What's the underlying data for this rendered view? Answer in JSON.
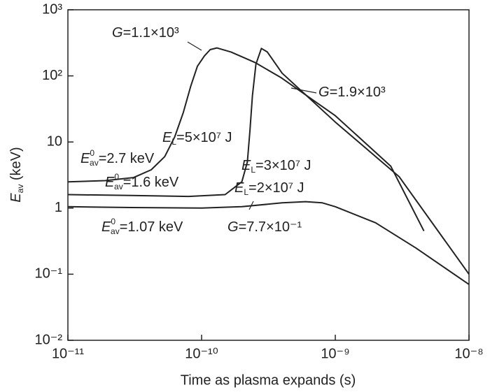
{
  "chart_data": {
    "type": "line",
    "log_x": true,
    "log_y": true,
    "xlabel": "Time as plasma expands (s)",
    "ylabel": {
      "main": "E",
      "sub": "av",
      "text": " (keV)"
    },
    "xlim": [
      1e-11,
      1e-08
    ],
    "xticks": [
      {
        "value": 1e-11,
        "label": "10⁻¹¹"
      },
      {
        "value": 1e-10,
        "label": "10⁻¹⁰"
      },
      {
        "value": 1e-09,
        "label": "10⁻⁹"
      },
      {
        "value": 1e-08,
        "label": "10⁻⁸"
      }
    ],
    "ylim": [
      0.01,
      1000
    ],
    "yticks": [
      {
        "value": 0.01,
        "label": "10⁻²"
      },
      {
        "value": 0.1,
        "label": "10⁻¹"
      },
      1,
      10,
      {
        "value": 100,
        "label": "10²"
      },
      {
        "value": 1000,
        "label": "10³"
      }
    ],
    "series": [
      {
        "color": "#222222",
        "x": [
          1e-11,
          1.9e-11,
          3.1e-11,
          4.2e-11,
          5.3e-11,
          6.3e-11,
          7.3e-11,
          8.3e-11,
          9.3e-11,
          1.05e-10,
          1.16e-10,
          1.3e-10,
          1.66e-10,
          2.5e-10,
          3.9e-10,
          1e-09,
          2.6e-09,
          4.6e-09
        ],
        "values": [
          2.5,
          2.6,
          2.9,
          3.8,
          6,
          12,
          28,
          70,
          140,
          200,
          250,
          265,
          230,
          160,
          95,
          25,
          4.3,
          0.45
        ]
      },
      {
        "color": "#222222",
        "x": [
          1e-11,
          3e-11,
          8e-11,
          1.5e-10,
          2e-10,
          2.2e-10,
          2.3e-10,
          2.4e-10,
          2.55e-10,
          2.8e-10,
          3.1e-10,
          4e-10,
          1e-09,
          3e-09,
          1e-08
        ],
        "values": [
          1.6,
          1.55,
          1.5,
          1.6,
          2.5,
          5,
          15,
          50,
          150,
          260,
          230,
          110,
          20,
          3,
          0.1
        ]
      },
      {
        "color": "#222222",
        "x": [
          1e-11,
          3e-11,
          1e-10,
          2e-10,
          4e-10,
          6e-10,
          8e-10,
          1e-09,
          2e-09,
          4e-09,
          1e-08
        ],
        "values": [
          1.05,
          1.02,
          1.0,
          1.05,
          1.2,
          1.25,
          1.2,
          1.05,
          0.6,
          0.25,
          0.07
        ]
      }
    ],
    "annotations": [
      {
        "main": "G",
        "text": "=1.1×10³"
      },
      {
        "main": "G",
        "text": "=1.9×10³"
      },
      {
        "main": "E",
        "sub": "L",
        "text": "=5×10⁷ J"
      },
      {
        "main": "E",
        "sup": "0",
        "sub": "av",
        "text": "=2.7 keV"
      },
      {
        "main": "E",
        "sub": "L",
        "text": "=3×10⁷ J"
      },
      {
        "main": "E",
        "sup": "0",
        "sub": "av",
        "text": "=1.6 keV"
      },
      {
        "main": "E",
        "sub": "L",
        "text": "=2×10⁷ J"
      },
      {
        "main": "E",
        "sup": "0",
        "sub": "av",
        "text": "=1.07 keV"
      },
      {
        "main": "G",
        "text": "=7.7×10⁻¹"
      }
    ]
  }
}
